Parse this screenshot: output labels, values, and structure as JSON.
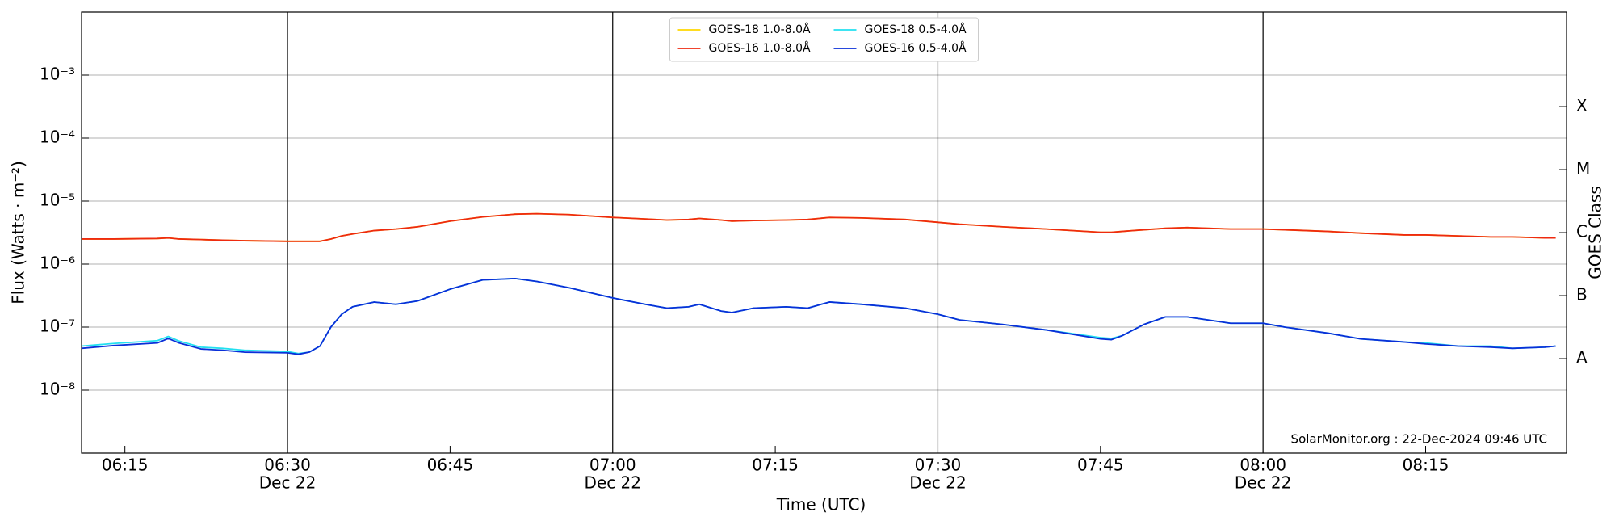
{
  "chart_data": {
    "type": "line",
    "xlabel": "Time (UTC)",
    "ylabel": "Flux (Watts · m⁻²)",
    "y2label": "GOES Class",
    "annotation": "SolarMonitor.org : 22-Dec-2024 09:46 UTC",
    "yscale": "log",
    "grid": true,
    "legend": "upper center",
    "legend_ncol": 2,
    "xlim": [
      "06:11",
      "08:28"
    ],
    "xticks": [
      "06:15",
      {
        "value": "06:30",
        "label": [
          "06:30",
          "Dec 22"
        ]
      },
      "06:45",
      {
        "value": "07:00",
        "label": [
          "07:00",
          "Dec 22"
        ]
      },
      "07:15",
      {
        "value": "07:30",
        "label": [
          "07:30",
          "Dec 22"
        ]
      },
      "07:45",
      {
        "value": "08:00",
        "label": [
          "08:00",
          "Dec 22"
        ]
      },
      "08:15"
    ],
    "ylim": [
      1e-09,
      0.01
    ],
    "yticks": [
      {
        "value": 1e-08,
        "label": "10⁻⁸"
      },
      {
        "value": 1e-07,
        "label": "10⁻⁷"
      },
      {
        "value": 1e-06,
        "label": "10⁻⁶"
      },
      {
        "value": 1e-05,
        "label": "10⁻⁵"
      },
      {
        "value": 0.0001,
        "label": "10⁻⁴"
      },
      {
        "value": 0.001,
        "label": "10⁻³"
      }
    ],
    "y2lim": [
      1e-09,
      0.01
    ],
    "y2ticks": [
      {
        "value": 3.16e-08,
        "label": "A"
      },
      {
        "value": 3.16e-07,
        "label": "B"
      },
      {
        "value": 3.16e-06,
        "label": "C"
      },
      {
        "value": 3.16e-05,
        "label": "M"
      },
      {
        "value": 0.000316,
        "label": "X"
      }
    ],
    "x": [
      "06:11",
      "06:14",
      "06:18",
      "06:19",
      "06:20",
      "06:22",
      "06:24",
      "06:26",
      "06:30",
      "06:31",
      "06:32",
      "06:33",
      "06:34",
      "06:35",
      "06:36",
      "06:38",
      "06:40",
      "06:42",
      "06:45",
      "06:48",
      "06:51",
      "06:53",
      "06:56",
      "07:00",
      "07:03",
      "07:05",
      "07:07",
      "07:08",
      "07:10",
      "07:11",
      "07:13",
      "07:16",
      "07:18",
      "07:20",
      "07:23",
      "07:27",
      "07:30",
      "07:32",
      "07:36",
      "07:40",
      "07:45",
      "07:46",
      "07:47",
      "07:49",
      "07:51",
      "07:53",
      "07:57",
      "08:00",
      "08:02",
      "08:06",
      "08:09",
      "08:13",
      "08:15",
      "08:18",
      "08:21",
      "08:23",
      "08:26",
      "08:27"
    ],
    "series": [
      {
        "name": "GOES-18 1.0-8.0Å",
        "color": "#ffd700",
        "values": [
          2.5e-06,
          2.5e-06,
          2.55e-06,
          2.6e-06,
          2.5e-06,
          2.45e-06,
          2.4e-06,
          2.35e-06,
          2.3e-06,
          2.3e-06,
          2.3e-06,
          2.3e-06,
          2.5e-06,
          2.8e-06,
          3e-06,
          3.4e-06,
          3.6e-06,
          3.9e-06,
          4.8e-06,
          5.6e-06,
          6.2e-06,
          6.3e-06,
          6.1e-06,
          5.5e-06,
          5.2e-06,
          5e-06,
          5.1e-06,
          5.3e-06,
          5e-06,
          4.8e-06,
          4.9e-06,
          5e-06,
          5.1e-06,
          5.5e-06,
          5.4e-06,
          5.1e-06,
          4.6e-06,
          4.3e-06,
          3.9e-06,
          3.6e-06,
          3.2e-06,
          3.2e-06,
          3.3e-06,
          3.5e-06,
          3.7e-06,
          3.8e-06,
          3.6e-06,
          3.6e-06,
          3.5e-06,
          3.3e-06,
          3.1e-06,
          2.9e-06,
          2.9e-06,
          2.8e-06,
          2.7e-06,
          2.7e-06,
          2.6e-06,
          2.6e-06
        ]
      },
      {
        "name": "GOES-16 1.0-8.0Å",
        "color": "#ee2a10",
        "values": [
          2.5e-06,
          2.5e-06,
          2.55e-06,
          2.6e-06,
          2.5e-06,
          2.45e-06,
          2.4e-06,
          2.35e-06,
          2.3e-06,
          2.3e-06,
          2.3e-06,
          2.3e-06,
          2.5e-06,
          2.8e-06,
          3e-06,
          3.4e-06,
          3.6e-06,
          3.9e-06,
          4.8e-06,
          5.6e-06,
          6.2e-06,
          6.3e-06,
          6.1e-06,
          5.5e-06,
          5.2e-06,
          5e-06,
          5.1e-06,
          5.3e-06,
          5e-06,
          4.8e-06,
          4.9e-06,
          5e-06,
          5.1e-06,
          5.5e-06,
          5.4e-06,
          5.1e-06,
          4.6e-06,
          4.3e-06,
          3.9e-06,
          3.6e-06,
          3.2e-06,
          3.2e-06,
          3.3e-06,
          3.5e-06,
          3.7e-06,
          3.8e-06,
          3.6e-06,
          3.6e-06,
          3.5e-06,
          3.3e-06,
          3.1e-06,
          2.9e-06,
          2.9e-06,
          2.8e-06,
          2.7e-06,
          2.7e-06,
          2.6e-06,
          2.6e-06
        ]
      },
      {
        "name": "GOES-18 0.5-4.0Å",
        "color": "#22e0f0",
        "values": [
          5e-08,
          5.5e-08,
          6.1e-08,
          7.1e-08,
          6e-08,
          4.8e-08,
          4.6e-08,
          4.3e-08,
          4.1e-08,
          3.8e-08,
          4e-08,
          5e-08,
          1e-07,
          1.6e-07,
          2.1e-07,
          2.5e-07,
          2.3e-07,
          2.6e-07,
          4e-07,
          5.6e-07,
          5.9e-07,
          5.3e-07,
          4.2e-07,
          2.9e-07,
          2.3e-07,
          2e-07,
          2.1e-07,
          2.3e-07,
          1.8e-07,
          1.7e-07,
          2e-07,
          2.1e-07,
          2e-07,
          2.5e-07,
          2.3e-07,
          2e-07,
          1.6e-07,
          1.3e-07,
          1.1e-07,
          9e-08,
          6.8e-08,
          6.6e-08,
          7.3e-08,
          1.1e-07,
          1.45e-07,
          1.45e-07,
          1.15e-07,
          1.15e-07,
          1e-07,
          8e-08,
          6.5e-08,
          5.8e-08,
          5.6e-08,
          5e-08,
          5e-08,
          4.6e-08,
          4.8e-08,
          5e-08
        ]
      },
      {
        "name": "GOES-16 0.5-4.0Å",
        "color": "#0a2fd8",
        "values": [
          4.6e-08,
          5.1e-08,
          5.6e-08,
          6.6e-08,
          5.6e-08,
          4.5e-08,
          4.3e-08,
          4e-08,
          3.9e-08,
          3.7e-08,
          4e-08,
          5e-08,
          1e-07,
          1.6e-07,
          2.1e-07,
          2.5e-07,
          2.3e-07,
          2.6e-07,
          4e-07,
          5.6e-07,
          5.9e-07,
          5.3e-07,
          4.2e-07,
          2.9e-07,
          2.3e-07,
          2e-07,
          2.1e-07,
          2.3e-07,
          1.8e-07,
          1.7e-07,
          2e-07,
          2.1e-07,
          2e-07,
          2.5e-07,
          2.3e-07,
          2e-07,
          1.6e-07,
          1.3e-07,
          1.1e-07,
          9e-08,
          6.5e-08,
          6.3e-08,
          7.3e-08,
          1.1e-07,
          1.45e-07,
          1.45e-07,
          1.15e-07,
          1.15e-07,
          1e-07,
          8e-08,
          6.5e-08,
          5.8e-08,
          5.4e-08,
          5e-08,
          4.8e-08,
          4.6e-08,
          4.8e-08,
          5e-08
        ]
      }
    ]
  }
}
